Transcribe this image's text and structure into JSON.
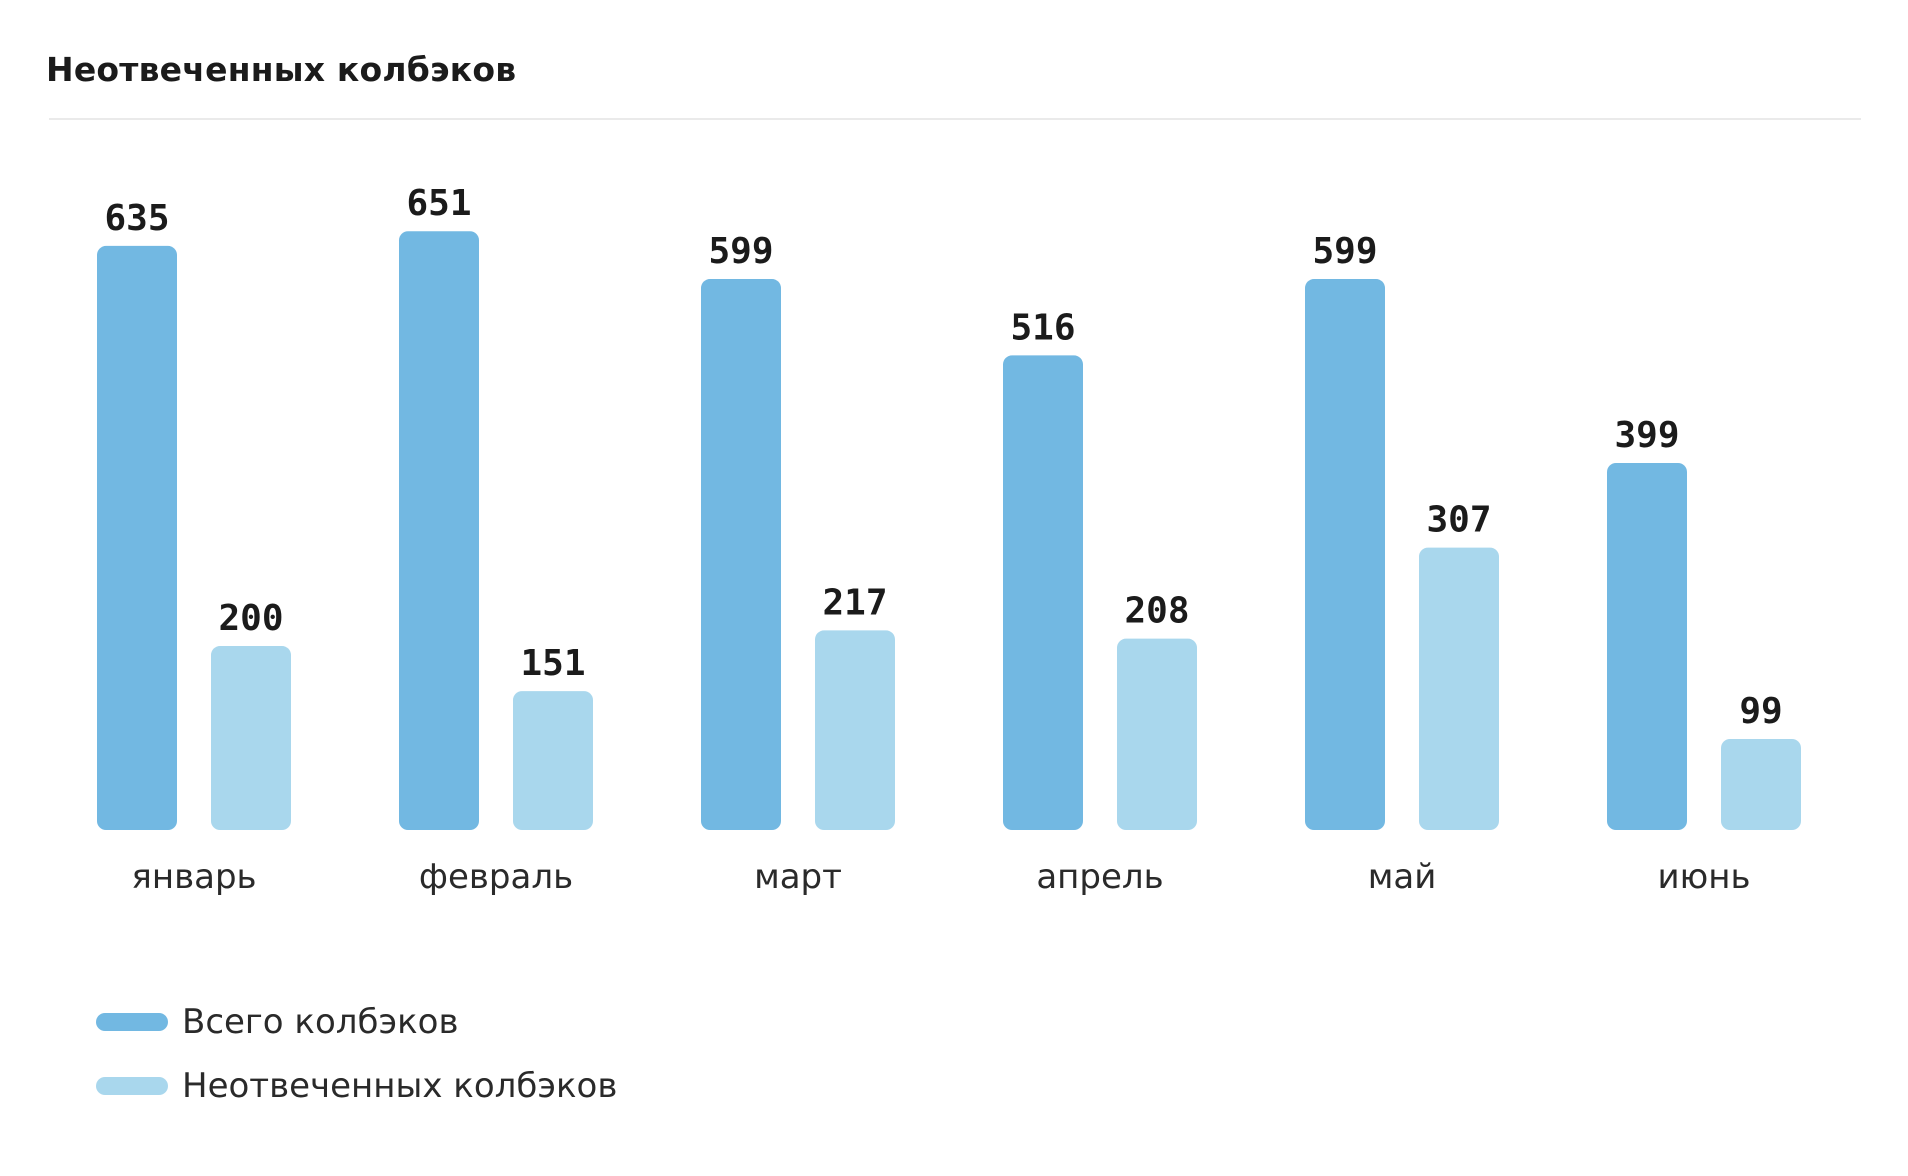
{
  "title": "Неотвеченных колбэков",
  "colors": {
    "total": "#72b8e2",
    "unanswered": "#a9d7ed"
  },
  "legend": {
    "items": [
      {
        "label": "Всего колбэков",
        "color": "#72b8e2"
      },
      {
        "label": "Неотвеченных колбэков",
        "color": "#a9d7ed"
      }
    ]
  },
  "chart_data": {
    "type": "bar",
    "categories": [
      "январь",
      "февраль",
      "март",
      "апрель",
      "май",
      "июнь"
    ],
    "series": [
      {
        "name": "Всего колбэков",
        "values": [
          635,
          651,
          599,
          516,
          599,
          399
        ]
      },
      {
        "name": "Неотвеченных колбэков",
        "values": [
          200,
          151,
          217,
          208,
          307,
          99
        ]
      }
    ],
    "ylim": [
      0,
      700
    ],
    "grid": false,
    "legend_position": "bottom-left"
  }
}
